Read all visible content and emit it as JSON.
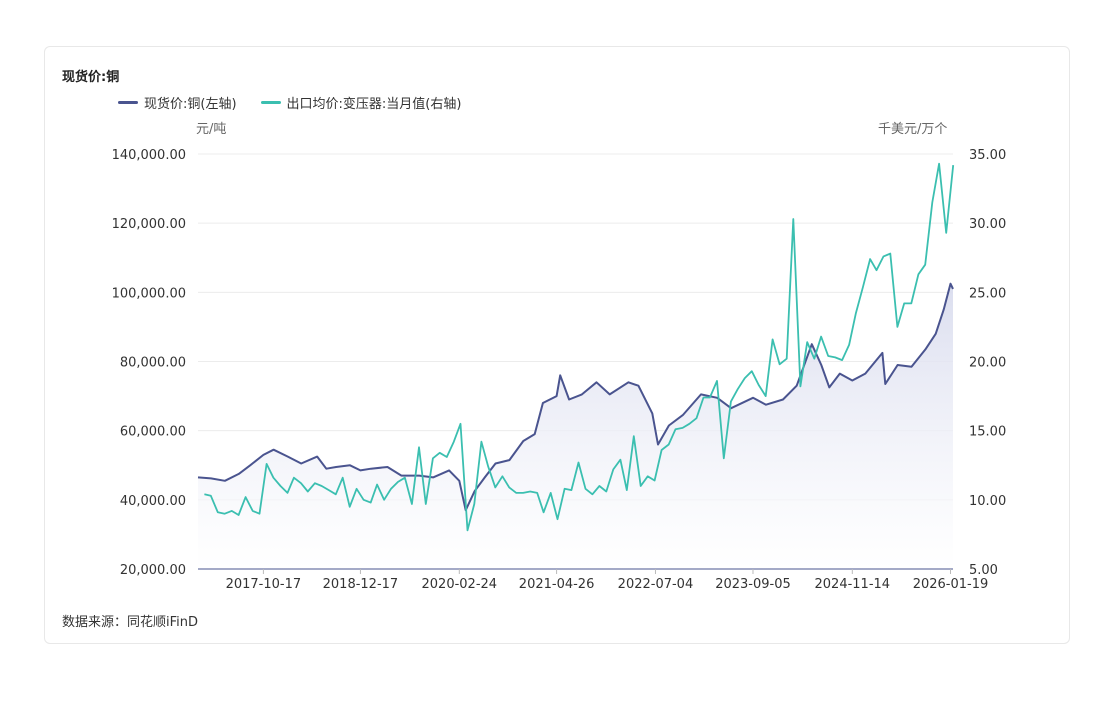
{
  "colors": {
    "copper": "#4a548f",
    "export": "#3bbfb0",
    "grid": "#ececec",
    "axis": "#4a548f",
    "fill": "#e3e5f2"
  },
  "chart_data": {
    "type": "line",
    "title": "现货价:铜",
    "ylabel_left": "元/吨",
    "ylabel_right": "千美元/万个",
    "source": "数据来源：同花顺iFinD",
    "x_ticks": [
      "2017-10-17",
      "2018-12-17",
      "2020-02-24",
      "2021-04-26",
      "2022-07-04",
      "2023-09-05",
      "2024-11-14",
      "2026-01-19"
    ],
    "x_range": [
      "2017-01-03",
      "2026-01-30"
    ],
    "y_left_ticks": [
      "20,000.00",
      "40,000.00",
      "60,000.00",
      "80,000.00",
      "100,000.00",
      "120,000.00",
      "140,000.00"
    ],
    "y_left_range": [
      20000,
      140000
    ],
    "y_right_ticks": [
      "5.00",
      "10.00",
      "15.00",
      "20.00",
      "25.00",
      "30.00",
      "35.00"
    ],
    "y_right_range": [
      5,
      35
    ],
    "series": [
      {
        "name": "现货价:铜(左轴)",
        "axis": "left",
        "area": true,
        "points": [
          [
            "2017-01-03",
            46500
          ],
          [
            "2017-03-01",
            46200
          ],
          [
            "2017-05-01",
            45500
          ],
          [
            "2017-07-01",
            47500
          ],
          [
            "2017-08-20",
            50000
          ],
          [
            "2017-10-17",
            53000
          ],
          [
            "2017-12-01",
            54500
          ],
          [
            "2018-02-01",
            52500
          ],
          [
            "2018-04-01",
            50500
          ],
          [
            "2018-06-10",
            52500
          ],
          [
            "2018-07-20",
            49000
          ],
          [
            "2018-09-01",
            49500
          ],
          [
            "2018-11-01",
            50000
          ],
          [
            "2018-12-17",
            48500
          ],
          [
            "2019-02-01",
            49000
          ],
          [
            "2019-04-15",
            49500
          ],
          [
            "2019-06-15",
            47000
          ],
          [
            "2019-09-01",
            47000
          ],
          [
            "2019-11-01",
            46500
          ],
          [
            "2020-01-10",
            48500
          ],
          [
            "2020-02-24",
            45500
          ],
          [
            "2020-03-23",
            37000
          ],
          [
            "2020-05-01",
            42500
          ],
          [
            "2020-06-15",
            46500
          ],
          [
            "2020-08-01",
            50500
          ],
          [
            "2020-10-01",
            51500
          ],
          [
            "2020-12-01",
            57000
          ],
          [
            "2021-01-20",
            59000
          ],
          [
            "2021-02-25",
            68000
          ],
          [
            "2021-04-26",
            70000
          ],
          [
            "2021-05-12",
            76000
          ],
          [
            "2021-06-20",
            69000
          ],
          [
            "2021-08-15",
            70500
          ],
          [
            "2021-10-18",
            74000
          ],
          [
            "2021-12-15",
            70500
          ],
          [
            "2022-03-07",
            74000
          ],
          [
            "2022-04-20",
            73000
          ],
          [
            "2022-06-20",
            65000
          ],
          [
            "2022-07-15",
            56000
          ],
          [
            "2022-09-01",
            61500
          ],
          [
            "2022-11-01",
            64500
          ],
          [
            "2023-01-20",
            70500
          ],
          [
            "2023-04-01",
            69500
          ],
          [
            "2023-06-01",
            66500
          ],
          [
            "2023-09-05",
            69500
          ],
          [
            "2023-11-01",
            67500
          ],
          [
            "2024-01-15",
            69000
          ],
          [
            "2024-03-15",
            73000
          ],
          [
            "2024-05-20",
            85000
          ],
          [
            "2024-07-01",
            79000
          ],
          [
            "2024-08-05",
            72500
          ],
          [
            "2024-09-20",
            76500
          ],
          [
            "2024-11-14",
            74500
          ],
          [
            "2025-01-10",
            76500
          ],
          [
            "2025-03-26",
            82500
          ],
          [
            "2025-04-08",
            73500
          ],
          [
            "2025-06-01",
            79000
          ],
          [
            "2025-08-01",
            78500
          ],
          [
            "2025-10-01",
            83500
          ],
          [
            "2025-11-15",
            88000
          ],
          [
            "2025-12-20",
            95000
          ],
          [
            "2026-01-19",
            102500
          ],
          [
            "2026-01-30",
            101000
          ]
        ]
      },
      {
        "name": "出口均价:变压器:当月值(右轴)",
        "axis": "right",
        "area": false,
        "points": [
          [
            "2017-01-31",
            10.4
          ],
          [
            "2017-02-28",
            10.3
          ],
          [
            "2017-03-31",
            9.1
          ],
          [
            "2017-04-30",
            9.0
          ],
          [
            "2017-05-31",
            9.2
          ],
          [
            "2017-06-30",
            8.9
          ],
          [
            "2017-07-31",
            10.2
          ],
          [
            "2017-08-31",
            9.2
          ],
          [
            "2017-09-30",
            9.0
          ],
          [
            "2017-10-31",
            12.6
          ],
          [
            "2017-11-30",
            11.6
          ],
          [
            "2017-12-31",
            11.0
          ],
          [
            "2018-01-31",
            10.5
          ],
          [
            "2018-02-28",
            11.6
          ],
          [
            "2018-03-31",
            11.2
          ],
          [
            "2018-04-30",
            10.6
          ],
          [
            "2018-05-31",
            11.2
          ],
          [
            "2018-06-30",
            11.0
          ],
          [
            "2018-07-31",
            10.7
          ],
          [
            "2018-08-31",
            10.4
          ],
          [
            "2018-09-30",
            11.6
          ],
          [
            "2018-10-31",
            9.5
          ],
          [
            "2018-11-30",
            10.8
          ],
          [
            "2018-12-31",
            10.0
          ],
          [
            "2019-01-31",
            9.8
          ],
          [
            "2019-02-28",
            11.1
          ],
          [
            "2019-03-31",
            10.0
          ],
          [
            "2019-04-30",
            10.8
          ],
          [
            "2019-05-31",
            11.3
          ],
          [
            "2019-06-30",
            11.6
          ],
          [
            "2019-07-31",
            9.7
          ],
          [
            "2019-08-31",
            13.8
          ],
          [
            "2019-09-30",
            9.7
          ],
          [
            "2019-10-31",
            13.0
          ],
          [
            "2019-11-30",
            13.4
          ],
          [
            "2019-12-31",
            13.1
          ],
          [
            "2020-01-31",
            14.2
          ],
          [
            "2020-02-29",
            15.5
          ],
          [
            "2020-03-31",
            7.8
          ],
          [
            "2020-04-30",
            9.7
          ],
          [
            "2020-05-31",
            14.2
          ],
          [
            "2020-06-30",
            12.4
          ],
          [
            "2020-07-31",
            10.9
          ],
          [
            "2020-08-31",
            11.7
          ],
          [
            "2020-09-30",
            10.9
          ],
          [
            "2020-10-31",
            10.5
          ],
          [
            "2020-11-30",
            10.5
          ],
          [
            "2020-12-31",
            10.6
          ],
          [
            "2021-01-31",
            10.5
          ],
          [
            "2021-02-28",
            9.1
          ],
          [
            "2021-03-31",
            10.5
          ],
          [
            "2021-04-30",
            8.6
          ],
          [
            "2021-05-31",
            10.8
          ],
          [
            "2021-06-30",
            10.7
          ],
          [
            "2021-07-31",
            12.7
          ],
          [
            "2021-08-31",
            10.8
          ],
          [
            "2021-09-30",
            10.4
          ],
          [
            "2021-10-31",
            11.0
          ],
          [
            "2021-11-30",
            10.6
          ],
          [
            "2021-12-31",
            12.2
          ],
          [
            "2022-01-31",
            12.9
          ],
          [
            "2022-02-28",
            10.7
          ],
          [
            "2022-03-31",
            14.6
          ],
          [
            "2022-04-30",
            11.0
          ],
          [
            "2022-05-31",
            11.7
          ],
          [
            "2022-06-30",
            11.4
          ],
          [
            "2022-07-31",
            13.6
          ],
          [
            "2022-08-31",
            14.0
          ],
          [
            "2022-09-30",
            15.1
          ],
          [
            "2022-10-31",
            15.2
          ],
          [
            "2022-11-30",
            15.5
          ],
          [
            "2022-12-31",
            15.9
          ],
          [
            "2023-01-31",
            17.4
          ],
          [
            "2023-02-28",
            17.4
          ],
          [
            "2023-03-31",
            18.6
          ],
          [
            "2023-04-30",
            13.0
          ],
          [
            "2023-05-31",
            17.1
          ],
          [
            "2023-06-30",
            18.0
          ],
          [
            "2023-07-31",
            18.8
          ],
          [
            "2023-08-31",
            19.3
          ],
          [
            "2023-09-30",
            18.3
          ],
          [
            "2023-10-31",
            17.5
          ],
          [
            "2023-11-30",
            21.6
          ],
          [
            "2023-12-31",
            19.8
          ],
          [
            "2024-01-31",
            20.2
          ],
          [
            "2024-02-29",
            30.3
          ],
          [
            "2024-03-31",
            18.2
          ],
          [
            "2024-04-30",
            21.4
          ],
          [
            "2024-05-31",
            20.2
          ],
          [
            "2024-06-30",
            21.8
          ],
          [
            "2024-07-31",
            20.4
          ],
          [
            "2024-08-31",
            20.3
          ],
          [
            "2024-09-30",
            20.1
          ],
          [
            "2024-10-31",
            21.2
          ],
          [
            "2024-11-30",
            23.5
          ],
          [
            "2024-12-31",
            25.4
          ],
          [
            "2025-01-31",
            27.4
          ],
          [
            "2025-02-28",
            26.6
          ],
          [
            "2025-03-31",
            27.6
          ],
          [
            "2025-04-30",
            27.8
          ],
          [
            "2025-05-31",
            22.5
          ],
          [
            "2025-06-30",
            24.2
          ],
          [
            "2025-07-31",
            24.2
          ],
          [
            "2025-08-31",
            26.3
          ],
          [
            "2025-09-30",
            27.0
          ],
          [
            "2025-10-31",
            31.5
          ],
          [
            "2025-11-30",
            34.3
          ],
          [
            "2025-12-31",
            29.3
          ],
          [
            "2026-01-31",
            34.2
          ]
        ]
      }
    ]
  }
}
